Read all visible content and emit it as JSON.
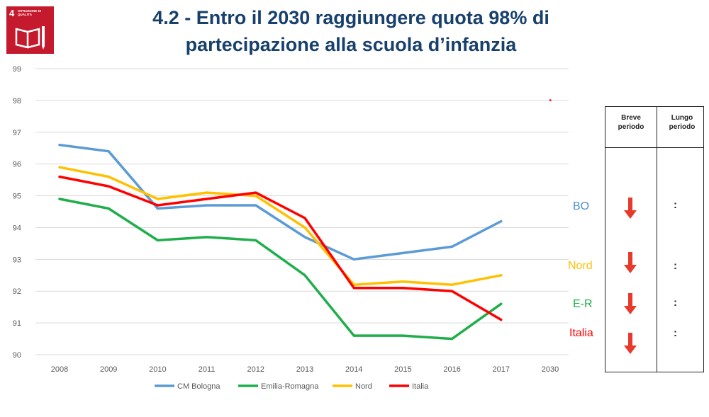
{
  "logo": {
    "number": "4",
    "text": "Istruzione di qualità",
    "icon": "book-pencil-icon",
    "color": "#c5192d"
  },
  "title": {
    "line1": "4.2 - Entro il 2030 raggiungere quota 98% di",
    "line2": "partecipazione alla scuola d’infanzia"
  },
  "chart_data": {
    "type": "line",
    "categories": [
      "2008",
      "2009",
      "2010",
      "2011",
      "2012",
      "2013",
      "2014",
      "2015",
      "2016",
      "2017",
      "2030"
    ],
    "ylim": [
      90,
      99
    ],
    "yticks": [
      "90",
      "91",
      "92",
      "93",
      "94",
      "95",
      "96",
      "97",
      "98",
      "99"
    ],
    "grid": true,
    "legend_position": "bottom",
    "series": [
      {
        "name": "CM Bologna",
        "color": "#5b9bd5",
        "values": [
          96.6,
          96.4,
          94.6,
          94.7,
          94.7,
          93.7,
          93.0,
          93.2,
          93.4,
          94.2,
          null
        ]
      },
      {
        "name": "Emilia-Romagna",
        "color": "#1fae4b",
        "values": [
          94.9,
          94.6,
          93.6,
          93.7,
          93.6,
          92.5,
          90.6,
          90.6,
          90.5,
          91.6,
          null
        ]
      },
      {
        "name": "Nord",
        "color": "#ffc000",
        "values": [
          95.9,
          95.6,
          94.9,
          95.1,
          95.0,
          94.0,
          92.2,
          92.3,
          92.2,
          92.5,
          null
        ]
      },
      {
        "name": "Italia",
        "color": "#ff0000",
        "values": [
          95.6,
          95.3,
          94.7,
          94.9,
          95.1,
          94.3,
          92.1,
          92.1,
          92.0,
          91.1,
          null
        ]
      }
    ],
    "target": {
      "category": "2030",
      "value": 98,
      "color": "#ff0000"
    }
  },
  "labels": [
    {
      "text": "BO",
      "color": "#4a90d0"
    },
    {
      "text": "Nord",
      "color": "#ffc000"
    },
    {
      "text": "E-R",
      "color": "#1fae4b"
    },
    {
      "text": "Italia",
      "color": "#ff0000"
    }
  ],
  "trend_table": {
    "headers": [
      "Breve periodo",
      "Lungo periodo"
    ],
    "rows": [
      {
        "breve_icon": "down-arrow-icon",
        "lungo": ":"
      },
      {
        "breve_icon": "down-arrow-icon",
        "lungo": ":"
      },
      {
        "breve_icon": "down-arrow-icon",
        "lungo": ":"
      },
      {
        "breve_icon": "down-arrow-icon",
        "lungo": ":"
      }
    ],
    "arrow_color": "#e8392b"
  }
}
